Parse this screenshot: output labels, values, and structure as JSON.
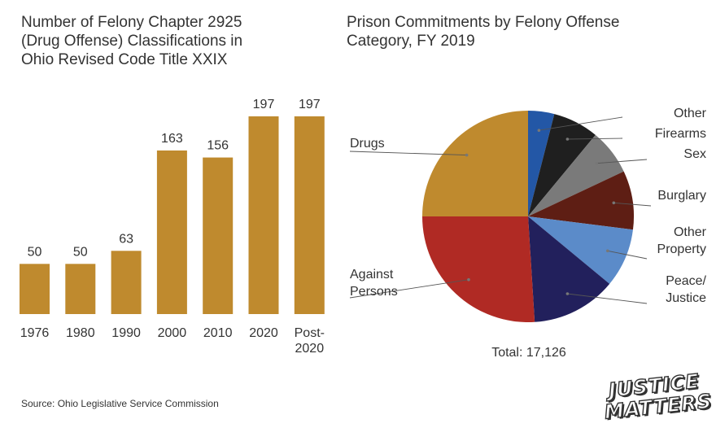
{
  "chart_data": [
    {
      "type": "bar",
      "title": "Number of Felony Chapter 2925\n(Drug Offense) Classifications in\nOhio Revised Code Title XXIX",
      "categories": [
        "1976",
        "1980",
        "1990",
        "2000",
        "2010",
        "2020",
        "Post-\n2020"
      ],
      "values": [
        50,
        50,
        63,
        163,
        156,
        197,
        197
      ],
      "ylim": [
        0,
        197
      ],
      "xlabel": "",
      "ylabel": "",
      "grid": false,
      "color": "#BF8A2E"
    },
    {
      "type": "pie",
      "title": "Prison Commitments by Felony Offense\nCategory, FY 2019",
      "total_label": "Total: 17,126",
      "slices": [
        {
          "label": "Other",
          "value": 4,
          "color": "#2357A6"
        },
        {
          "label": "Firearms",
          "value": 7,
          "color": "#1F1F1F"
        },
        {
          "label": "Sex",
          "value": 7,
          "color": "#7A7A7A"
        },
        {
          "label": "Burglary",
          "value": 9,
          "color": "#5E1E14"
        },
        {
          "label": "Other\nProperty",
          "value": 9,
          "color": "#5B8BC9"
        },
        {
          "label": "Peace/\nJustice",
          "value": 13,
          "color": "#22205C"
        },
        {
          "label": "Against\nPersons",
          "value": 26,
          "color": "#B02A24"
        },
        {
          "label": "Drugs",
          "value": 25,
          "color": "#BF8A2E"
        }
      ]
    }
  ],
  "footer": {
    "source": "Source: Ohio Legislative Service Commission",
    "logo_line1": "JUSTICE",
    "logo_line2": "MATTERS"
  }
}
